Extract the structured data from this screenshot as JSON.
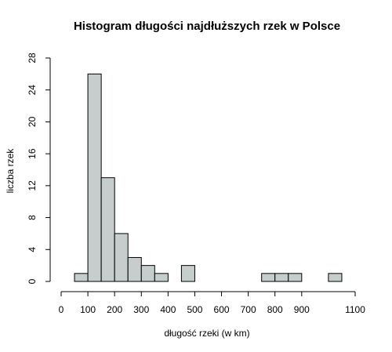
{
  "chart_data": {
    "type": "bar",
    "title": "Histogram długości najdłuższych rzek w Polsce",
    "xlabel": "długość rzeki (w km)",
    "ylabel": "liczba rzek",
    "bar_color": "#c5cdcd",
    "xlim": [
      0,
      1100
    ],
    "ylim": [
      0,
      28
    ],
    "x_ticks": [
      0,
      100,
      200,
      300,
      400,
      500,
      600,
      700,
      800,
      900,
      1100
    ],
    "y_ticks": [
      0,
      4,
      8,
      12,
      16,
      20,
      24,
      28
    ],
    "bin_width": 50,
    "bins": [
      {
        "start": 50,
        "end": 100,
        "count": 1
      },
      {
        "start": 100,
        "end": 150,
        "count": 26
      },
      {
        "start": 150,
        "end": 200,
        "count": 13
      },
      {
        "start": 200,
        "end": 250,
        "count": 6
      },
      {
        "start": 250,
        "end": 300,
        "count": 3
      },
      {
        "start": 300,
        "end": 350,
        "count": 2
      },
      {
        "start": 350,
        "end": 400,
        "count": 1
      },
      {
        "start": 400,
        "end": 450,
        "count": 0
      },
      {
        "start": 450,
        "end": 500,
        "count": 2
      },
      {
        "start": 500,
        "end": 550,
        "count": 0
      },
      {
        "start": 550,
        "end": 600,
        "count": 0
      },
      {
        "start": 600,
        "end": 650,
        "count": 0
      },
      {
        "start": 650,
        "end": 700,
        "count": 0
      },
      {
        "start": 700,
        "end": 750,
        "count": 0
      },
      {
        "start": 750,
        "end": 800,
        "count": 1
      },
      {
        "start": 800,
        "end": 850,
        "count": 1
      },
      {
        "start": 850,
        "end": 900,
        "count": 1
      },
      {
        "start": 900,
        "end": 950,
        "count": 0
      },
      {
        "start": 950,
        "end": 1000,
        "count": 0
      },
      {
        "start": 1000,
        "end": 1050,
        "count": 1
      }
    ]
  }
}
